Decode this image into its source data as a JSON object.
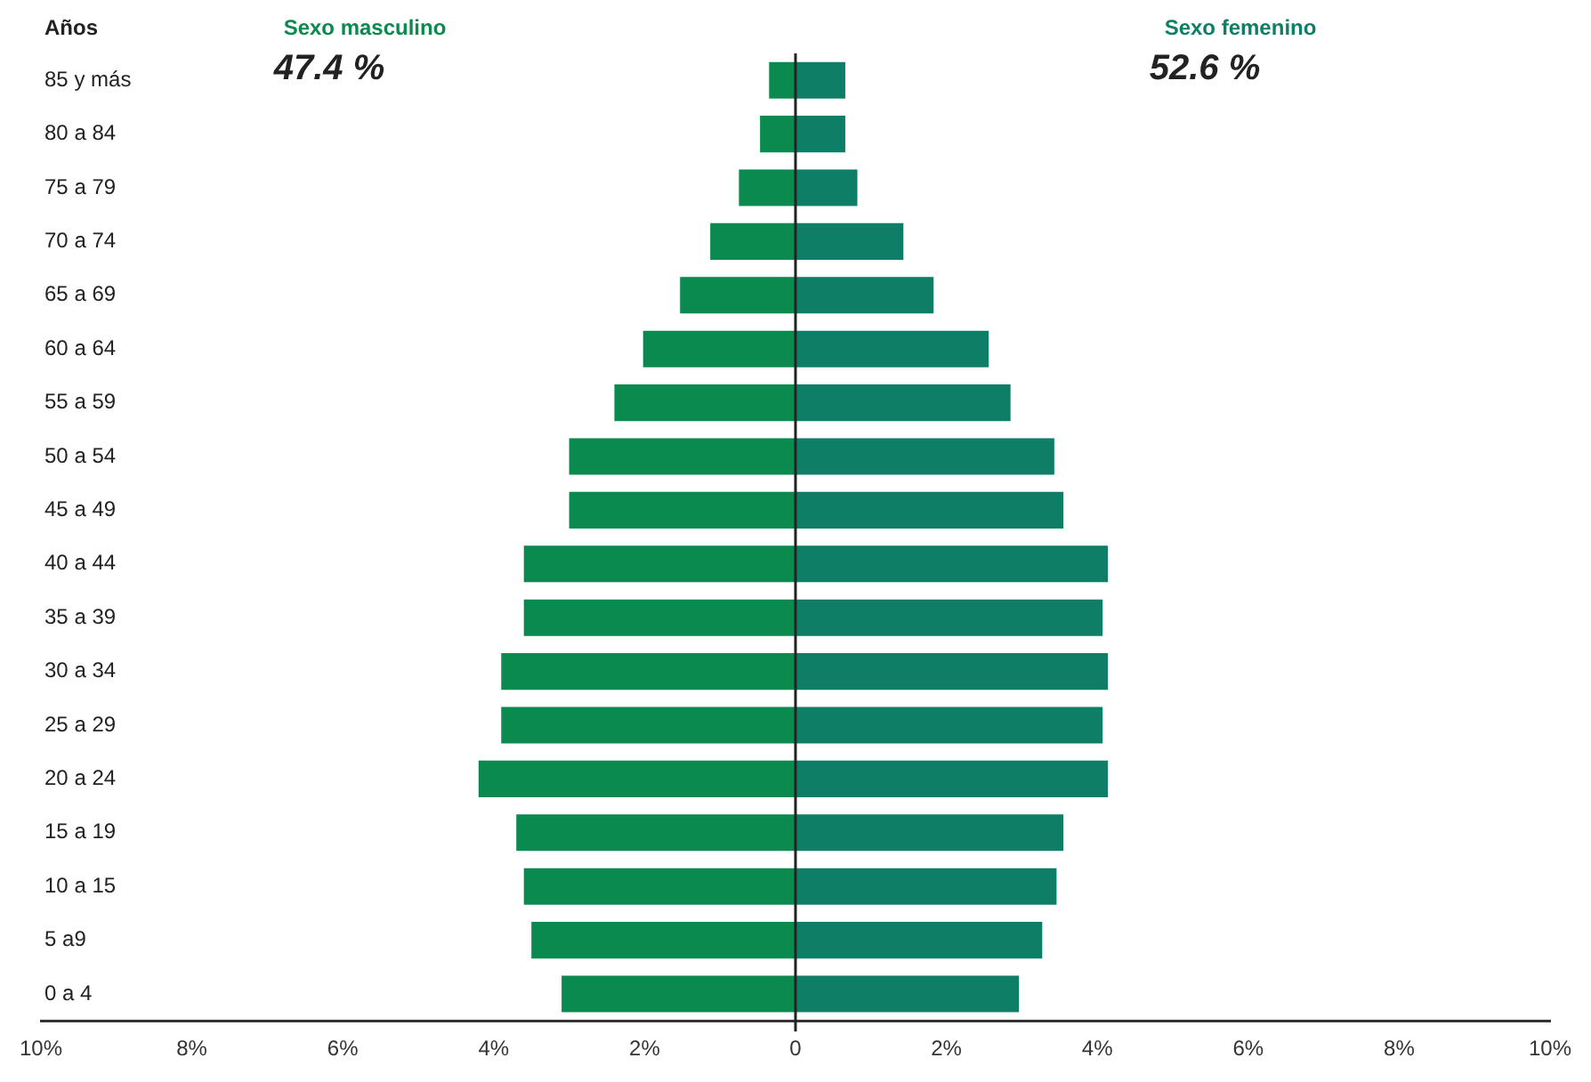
{
  "chart_data": {
    "type": "bar",
    "orientation": "horizontal",
    "stacked": true,
    "ylabel": "Años",
    "categories": [
      "85 y más",
      "80 a 84",
      "75 a 79",
      "70 a 74",
      "65 a 69",
      "60 a 64",
      "55 a 59",
      "50 a 54",
      "45 a 49",
      "40 a 44",
      "35 a 39",
      "30 a 34",
      "25 a 29",
      "20 a 24",
      "15 a 19",
      "10 a 15",
      "5 a9",
      "0 a 4"
    ],
    "series": [
      {
        "name": "Sexo masculino",
        "color": "#0a8a4e",
        "values": [
          -0.35,
          -0.47,
          -0.75,
          -1.13,
          -1.53,
          -2.02,
          -2.4,
          -3.0,
          -3.0,
          -3.6,
          -3.6,
          -3.9,
          -3.9,
          -4.2,
          -3.7,
          -3.6,
          -3.5,
          -3.1
        ]
      },
      {
        "name": "Sexo femenino",
        "color": "#0e7f66",
        "values": [
          0.66,
          0.66,
          0.82,
          1.43,
          1.83,
          2.56,
          2.85,
          3.43,
          3.55,
          4.14,
          4.07,
          4.14,
          4.07,
          4.14,
          3.55,
          3.46,
          3.27,
          2.96
        ]
      }
    ],
    "annotations": [
      "47.4 %",
      "52.6 %"
    ],
    "xlim": [
      -10,
      10
    ],
    "xticks": [
      {
        "value": -10,
        "label": "10%"
      },
      {
        "value": -8,
        "label": "8%"
      },
      {
        "value": -6,
        "label": "6%"
      },
      {
        "value": -4,
        "label": "4%"
      },
      {
        "value": -2,
        "label": "2%"
      },
      0,
      {
        "value": 2,
        "label": "2%"
      },
      {
        "value": 4,
        "label": "4%"
      },
      {
        "value": 6,
        "label": "6%"
      },
      {
        "value": 8,
        "label": "8%"
      },
      {
        "value": 10,
        "label": "10%"
      }
    ],
    "ref_lines": [
      {
        "axis": "x",
        "value": 0,
        "color": "#222222"
      }
    ],
    "grid": false,
    "legend": false
  }
}
